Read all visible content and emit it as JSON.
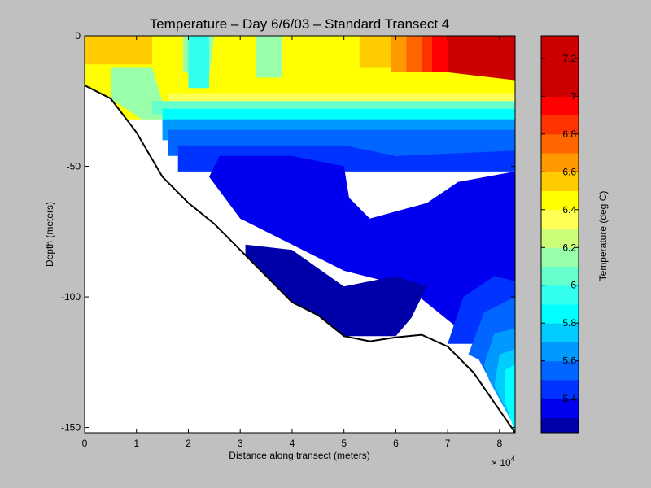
{
  "chart_data": {
    "type": "heatmap",
    "title": "Temperature – Day 6/6/03 – Standard Transect 4",
    "xlabel": "Distance along transect (meters)",
    "ylabel": "Depth (meters)",
    "x_multiplier_label": "× 10",
    "x_multiplier_exponent": "4",
    "xlim": [
      0,
      83000
    ],
    "ylim": [
      -152,
      0
    ],
    "x_ticks": [
      0,
      1,
      2,
      3,
      4,
      5,
      6,
      7,
      8
    ],
    "y_ticks": [
      0,
      -50,
      -100,
      -150
    ],
    "colorbar": {
      "label": "Temperature (deg C)",
      "range": [
        5.22,
        7.32
      ],
      "ticks": [
        "5.4",
        "5.6",
        "5.8",
        "6",
        "6.2",
        "6.4",
        "6.6",
        "6.8",
        "7",
        "7.2"
      ],
      "levels": [
        {
          "min": 5.22,
          "max": 5.3,
          "color": "#0000aa"
        },
        {
          "min": 5.3,
          "max": 5.4,
          "color": "#0000ee"
        },
        {
          "min": 5.4,
          "max": 5.5,
          "color": "#0033ff"
        },
        {
          "min": 5.5,
          "max": 5.6,
          "color": "#0066ff"
        },
        {
          "min": 5.6,
          "max": 5.7,
          "color": "#0099ff"
        },
        {
          "min": 5.7,
          "max": 5.8,
          "color": "#00ccff"
        },
        {
          "min": 5.8,
          "max": 5.9,
          "color": "#00ffff"
        },
        {
          "min": 5.9,
          "max": 6.0,
          "color": "#33ffee"
        },
        {
          "min": 6.0,
          "max": 6.1,
          "color": "#66ffcc"
        },
        {
          "min": 6.1,
          "max": 6.2,
          "color": "#99ffaa"
        },
        {
          "min": 6.2,
          "max": 6.3,
          "color": "#ccff77"
        },
        {
          "min": 6.3,
          "max": 6.4,
          "color": "#ffff55"
        },
        {
          "min": 6.4,
          "max": 6.5,
          "color": "#ffff00"
        },
        {
          "min": 6.5,
          "max": 6.6,
          "color": "#ffcc00"
        },
        {
          "min": 6.6,
          "max": 6.7,
          "color": "#ff9900"
        },
        {
          "min": 6.7,
          "max": 6.8,
          "color": "#ff6600"
        },
        {
          "min": 6.8,
          "max": 6.9,
          "color": "#ff3300"
        },
        {
          "min": 6.9,
          "max": 7.0,
          "color": "#ff0000"
        },
        {
          "min": 7.0,
          "max": 7.32,
          "color": "#cc0000"
        }
      ]
    },
    "bottom_profile": [
      [
        0,
        -19
      ],
      [
        5000,
        -24
      ],
      [
        10000,
        -37
      ],
      [
        15000,
        -54
      ],
      [
        20000,
        -64
      ],
      [
        25000,
        -72
      ],
      [
        30000,
        -82
      ],
      [
        35000,
        -92
      ],
      [
        40000,
        -102
      ],
      [
        45000,
        -107
      ],
      [
        50000,
        -115
      ],
      [
        55000,
        -117
      ],
      [
        60000,
        -115.5
      ],
      [
        65000,
        -114.5
      ],
      [
        70000,
        -119
      ],
      [
        75000,
        -129
      ],
      [
        83000,
        -152
      ]
    ],
    "regions": [
      {
        "temp": 6.45,
        "points": [
          [
            0,
            0
          ],
          [
            83000,
            0
          ],
          [
            83000,
            -32
          ],
          [
            0,
            -32
          ]
        ]
      },
      {
        "temp": 6.55,
        "points": [
          [
            0,
            0
          ],
          [
            13000,
            0
          ],
          [
            13000,
            -11
          ],
          [
            0,
            -11
          ]
        ]
      },
      {
        "temp": 6.15,
        "points": [
          [
            5000,
            -24
          ],
          [
            5000,
            -12
          ],
          [
            13000,
            -12
          ],
          [
            16000,
            -32
          ],
          [
            11000,
            -32
          ],
          [
            5000,
            -24
          ]
        ]
      },
      {
        "temp": 6.15,
        "points": [
          [
            19000,
            0
          ],
          [
            25000,
            0
          ],
          [
            24000,
            -16
          ],
          [
            19000,
            -14
          ]
        ]
      },
      {
        "temp": 6.15,
        "points": [
          [
            33000,
            0
          ],
          [
            38000,
            0
          ],
          [
            38000,
            -16
          ],
          [
            33000,
            -16
          ]
        ]
      },
      {
        "temp": 5.95,
        "points": [
          [
            20000,
            0
          ],
          [
            24000,
            0
          ],
          [
            24000,
            -20
          ],
          [
            20000,
            -20
          ]
        ]
      },
      {
        "temp": 6.55,
        "points": [
          [
            53000,
            0
          ],
          [
            59000,
            0
          ],
          [
            59000,
            -12
          ],
          [
            53000,
            -12
          ]
        ]
      },
      {
        "temp": 6.65,
        "points": [
          [
            59000,
            0
          ],
          [
            62000,
            0
          ],
          [
            62000,
            -14
          ],
          [
            59000,
            -14
          ]
        ]
      },
      {
        "temp": 6.75,
        "points": [
          [
            62000,
            0
          ],
          [
            65000,
            0
          ],
          [
            65000,
            -14
          ],
          [
            62000,
            -14
          ]
        ]
      },
      {
        "temp": 6.85,
        "points": [
          [
            65000,
            0
          ],
          [
            67000,
            0
          ],
          [
            67000,
            -14
          ],
          [
            65000,
            -14
          ]
        ]
      },
      {
        "temp": 6.95,
        "points": [
          [
            67000,
            0
          ],
          [
            70000,
            0
          ],
          [
            70000,
            -14
          ],
          [
            67000,
            -14
          ]
        ]
      },
      {
        "temp": 7.2,
        "points": [
          [
            70000,
            0
          ],
          [
            83000,
            0
          ],
          [
            83000,
            -17
          ],
          [
            70000,
            -14
          ]
        ]
      },
      {
        "temp": 6.35,
        "points": [
          [
            16000,
            -22
          ],
          [
            83000,
            -22
          ],
          [
            83000,
            -28
          ],
          [
            16000,
            -28
          ]
        ]
      },
      {
        "temp": 6.05,
        "points": [
          [
            13000,
            -25
          ],
          [
            83000,
            -25
          ],
          [
            83000,
            -30
          ],
          [
            13000,
            -30
          ]
        ]
      },
      {
        "temp": 5.85,
        "points": [
          [
            15000,
            -28
          ],
          [
            83000,
            -28
          ],
          [
            83000,
            -33
          ],
          [
            15000,
            -33
          ]
        ]
      },
      {
        "temp": 5.75,
        "points": [
          [
            16000,
            -32
          ],
          [
            83000,
            -32
          ],
          [
            83000,
            -36
          ],
          [
            16000,
            -36
          ]
        ]
      },
      {
        "temp": 5.65,
        "points": [
          [
            15000,
            -32
          ],
          [
            83000,
            -32
          ],
          [
            83000,
            -40
          ],
          [
            15000,
            -40
          ]
        ]
      },
      {
        "temp": 5.55,
        "points": [
          [
            16000,
            -36
          ],
          [
            83000,
            -36
          ],
          [
            83000,
            -46
          ],
          [
            16000,
            -46
          ]
        ]
      },
      {
        "temp": 5.45,
        "points": [
          [
            18000,
            -42
          ],
          [
            50000,
            -42
          ],
          [
            60000,
            -46
          ],
          [
            83000,
            -44
          ],
          [
            83000,
            -52
          ],
          [
            18000,
            -52
          ]
        ]
      },
      {
        "temp": 5.35,
        "points": [
          [
            26000,
            -46
          ],
          [
            40000,
            -46
          ],
          [
            50000,
            -50
          ],
          [
            51000,
            -62
          ],
          [
            55000,
            -70
          ],
          [
            66000,
            -64
          ],
          [
            72000,
            -56
          ],
          [
            83000,
            -52
          ],
          [
            83000,
            -118
          ],
          [
            72000,
            -112
          ],
          [
            62000,
            -96
          ],
          [
            50000,
            -90
          ],
          [
            40000,
            -80
          ],
          [
            30000,
            -70
          ],
          [
            24000,
            -54
          ]
        ]
      },
      {
        "temp": 5.25,
        "points": [
          [
            31000,
            -80
          ],
          [
            40000,
            -82
          ],
          [
            50000,
            -96
          ],
          [
            60000,
            -92
          ],
          [
            66000,
            -96
          ],
          [
            63000,
            -108
          ],
          [
            60000,
            -115
          ],
          [
            50000,
            -115
          ],
          [
            40000,
            -102
          ],
          [
            31000,
            -86
          ]
        ]
      },
      {
        "temp": 5.45,
        "points": [
          [
            70000,
            -118
          ],
          [
            73000,
            -100
          ],
          [
            79000,
            -92
          ],
          [
            83000,
            -94
          ],
          [
            83000,
            -118
          ],
          [
            76000,
            -118
          ]
        ]
      },
      {
        "temp": 5.55,
        "points": [
          [
            74000,
            -122
          ],
          [
            77000,
            -106
          ],
          [
            83000,
            -100
          ],
          [
            83000,
            -150
          ],
          [
            76000,
            -124
          ]
        ]
      },
      {
        "temp": 5.65,
        "points": [
          [
            77000,
            -126
          ],
          [
            79000,
            -114
          ],
          [
            83000,
            -112
          ],
          [
            83000,
            -150
          ],
          [
            78000,
            -132
          ]
        ]
      },
      {
        "temp": 5.75,
        "points": [
          [
            79000,
            -134
          ],
          [
            80000,
            -122
          ],
          [
            83000,
            -120
          ],
          [
            83000,
            -150
          ]
        ]
      },
      {
        "temp": 5.85,
        "points": [
          [
            81000,
            -140
          ],
          [
            81000,
            -128
          ],
          [
            83000,
            -126
          ],
          [
            83000,
            -152
          ]
        ]
      }
    ]
  }
}
